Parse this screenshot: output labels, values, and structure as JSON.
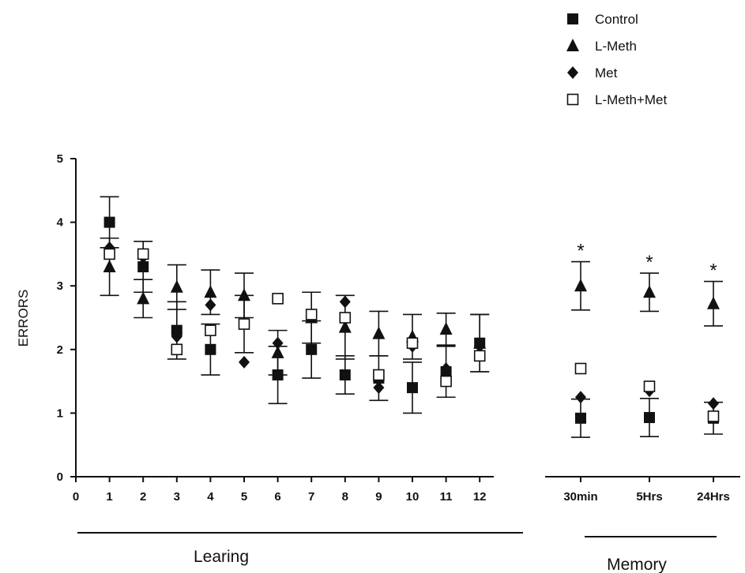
{
  "chart_data": {
    "type": "scatter",
    "ylabel": "ERRORS",
    "ylim": [
      0,
      5
    ],
    "y_ticks": [
      "0",
      "1",
      "2",
      "3",
      "4",
      "5"
    ],
    "x_ticks": [
      "0",
      "1",
      "2",
      "3",
      "4",
      "5",
      "6",
      "7",
      "8",
      "9",
      "10",
      "11",
      "12",
      "30min",
      "5Hrs",
      "24Hrs"
    ],
    "groups": [
      {
        "label": "Learing",
        "categories": [
          "1",
          "2",
          "3",
          "4",
          "5",
          "6",
          "7",
          "8",
          "9",
          "10",
          "11",
          "12"
        ]
      },
      {
        "label": "Memory",
        "categories": [
          "30min",
          "5Hrs",
          "24Hrs"
        ]
      }
    ],
    "error_bars": true,
    "significance_marker": "*",
    "significant_categories": [
      "30min",
      "5Hrs",
      "24Hrs"
    ],
    "legend_position": "top-right",
    "categories": [
      "1",
      "2",
      "3",
      "4",
      "5",
      "6",
      "7",
      "8",
      "9",
      "10",
      "11",
      "12",
      "30min",
      "5Hrs",
      "24Hrs"
    ],
    "series": [
      {
        "name": "Control",
        "marker": "filled-square",
        "values": [
          4.0,
          3.3,
          2.3,
          2.0,
          2.4,
          1.6,
          2.0,
          1.6,
          1.55,
          1.4,
          1.65,
          2.1,
          0.92,
          0.93,
          0.92
        ],
        "errors": [
          0.4,
          0.4,
          0.45,
          0.4,
          0.45,
          0.45,
          0.45,
          0.3,
          0.35,
          0.4,
          0.4,
          0.45,
          0.3,
          0.3,
          0.25
        ]
      },
      {
        "name": "L-Meth",
        "marker": "filled-triangle",
        "values": [
          3.3,
          2.8,
          2.98,
          2.9,
          2.85,
          1.95,
          2.5,
          2.35,
          2.25,
          2.2,
          2.32,
          2.1,
          3.0,
          2.9,
          2.72
        ],
        "errors": [
          0.45,
          0.3,
          0.35,
          0.35,
          0.35,
          0.35,
          0.4,
          0.5,
          0.35,
          0.35,
          0.25,
          0.45,
          0.38,
          0.3,
          0.35
        ]
      },
      {
        "name": "Met",
        "marker": "filled-diamond",
        "values": [
          3.6,
          3.45,
          2.2,
          2.7,
          1.8,
          2.1,
          2.55,
          2.75,
          1.4,
          2.05,
          1.7,
          2.05,
          1.25,
          1.35,
          1.15
        ]
      },
      {
        "name": "L-Meth+Met",
        "marker": "open-square",
        "values": [
          3.5,
          3.5,
          2.0,
          2.3,
          2.4,
          2.8,
          2.55,
          2.5,
          1.6,
          2.1,
          1.5,
          1.9,
          1.7,
          1.42,
          0.95
        ]
      }
    ]
  }
}
